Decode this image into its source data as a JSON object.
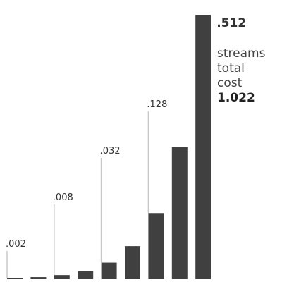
{
  "chart_data": {
    "type": "bar",
    "categories": [
      "",
      "",
      "",
      "",
      "",
      "",
      "",
      "",
      ""
    ],
    "values": [
      0.002,
      0.004,
      0.008,
      0.016,
      0.032,
      0.064,
      0.128,
      0.256,
      0.512
    ],
    "labeled": [
      {
        "index": 0,
        "label": ".002"
      },
      {
        "index": 2,
        "label": ".008"
      },
      {
        "index": 4,
        "label": ".032"
      },
      {
        "index": 6,
        "label": ".128"
      },
      {
        "index": 8,
        "label": ".512"
      }
    ],
    "ylim": [
      0,
      0.512
    ],
    "grid": false,
    "colors": {
      "bar": "#404040",
      "leader": "#c8c8c8",
      "text": "#333333"
    }
  },
  "legend": {
    "line1": "streams",
    "line2": "total",
    "line3": "cost",
    "total": "1.022"
  }
}
